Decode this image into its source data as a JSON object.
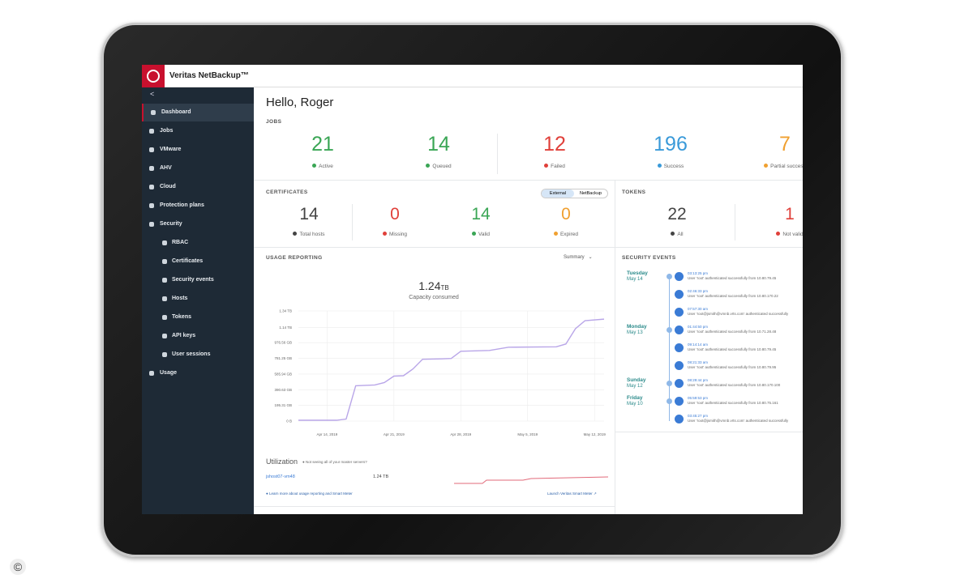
{
  "header": {
    "brand": "Veritas NetBackup™"
  },
  "sidebar": {
    "collapse": "<",
    "items": [
      {
        "label": "Dashboard",
        "level": 1,
        "active": true
      },
      {
        "label": "Jobs",
        "level": 1
      },
      {
        "label": "VMware",
        "level": 1
      },
      {
        "label": "AHV",
        "level": 1
      },
      {
        "label": "Cloud",
        "level": 1
      },
      {
        "label": "Protection plans",
        "level": 1
      },
      {
        "label": "Security",
        "level": 1
      },
      {
        "label": "RBAC",
        "level": 2
      },
      {
        "label": "Certificates",
        "level": 2
      },
      {
        "label": "Security events",
        "level": 2
      },
      {
        "label": "Hosts",
        "level": 2
      },
      {
        "label": "Tokens",
        "level": 2
      },
      {
        "label": "API keys",
        "level": 2
      },
      {
        "label": "User sessions",
        "level": 2
      },
      {
        "label": "Usage",
        "level": 1
      }
    ]
  },
  "greeting": "Hello, Roger",
  "jobs": {
    "title": "JOBS",
    "stats": [
      {
        "value": 21,
        "label": "Active",
        "color": "#3aa655"
      },
      {
        "value": 14,
        "label": "Queued",
        "color": "#3aa655"
      },
      {
        "value": 12,
        "label": "Failed",
        "color": "#e0403a"
      },
      {
        "value": 196,
        "label": "Success",
        "color": "#3a9ad9"
      },
      {
        "value": 7,
        "label": "Partial success",
        "color": "#f0a030"
      }
    ]
  },
  "certificates": {
    "title": "CERTIFICATES",
    "toggle": [
      "External",
      "NetBackup"
    ],
    "stats": [
      {
        "value": 14,
        "label": "Total hosts",
        "color": "#444444"
      },
      {
        "value": 0,
        "label": "Missing",
        "color": "#e0403a"
      },
      {
        "value": 14,
        "label": "Valid",
        "color": "#3aa655"
      },
      {
        "value": 0,
        "label": "Expired",
        "color": "#f0a030"
      }
    ]
  },
  "tokens": {
    "title": "TOKENS",
    "stats": [
      {
        "value": 22,
        "label": "All",
        "color": "#444444"
      },
      {
        "value": 1,
        "label": "Not valid",
        "color": "#e0403a"
      }
    ]
  },
  "usage": {
    "title": "USAGE REPORTING",
    "filter": "Summary",
    "capacity": "1.24",
    "capacity_unit": "TB",
    "capacity_label": "Capacity consumed",
    "chart": {
      "type": "line",
      "color": "#b9a6e8",
      "grid": true,
      "x": [
        "2019-04-11",
        "2019-04-15",
        "2019-04-16",
        "2019-04-17",
        "2019-04-19",
        "2019-04-20",
        "2019-04-21",
        "2019-04-22",
        "2019-04-23",
        "2019-04-24",
        "2019-04-26",
        "2019-04-27",
        "2019-04-28",
        "2019-05-01",
        "2019-05-03",
        "2019-05-08",
        "2019-05-09",
        "2019-05-10",
        "2019-05-11",
        "2019-05-13"
      ],
      "values": [
        10,
        10,
        25,
        440,
        450,
        480,
        560,
        565,
        650,
        770,
        775,
        780,
        870,
        880,
        920,
        925,
        960,
        1150,
        1250,
        1270
      ],
      "xlim": [
        "2019-04-11",
        "2019-05-13"
      ],
      "xticks": [
        {
          "value": "2019-04-14",
          "label": "Apr 14, 2019"
        },
        {
          "value": "2019-04-21",
          "label": "Apr 21, 2019"
        },
        {
          "value": "2019-04-28",
          "label": "Apr 28, 2019"
        },
        {
          "value": "2019-05-05",
          "label": "May 5, 2019"
        },
        {
          "value": "2019-05-12",
          "label": "May 12, 2019"
        }
      ],
      "ylim": [
        0,
        1372.16
      ],
      "yticks": [
        {
          "value": 0,
          "label": "0 B"
        },
        {
          "value": 195.31,
          "label": "195.31 GB"
        },
        {
          "value": 390.63,
          "label": "390.63 GB"
        },
        {
          "value": 585.94,
          "label": "585.94 GB"
        },
        {
          "value": 781.25,
          "label": "781.25 GB"
        },
        {
          "value": 976.56,
          "label": "976.56 GB"
        },
        {
          "value": 1167.36,
          "label": "1.14 TB"
        },
        {
          "value": 1372.16,
          "label": "1.34 TB"
        }
      ]
    },
    "utilization": {
      "title": "Utilization",
      "hint": "Not seeing all of your master servers?",
      "host": "jshost07-vm48",
      "amount": "1.24 TB"
    },
    "learn_more": "Learn more about usage reporting and Smart Meter",
    "launch": "Launch Veritas Smart Meter"
  },
  "security_events": {
    "title": "SECURITY EVENTS",
    "days": [
      {
        "day": "Tuesday",
        "date": "May 14",
        "events": [
          {
            "time": "03:13:25 pm",
            "text": "User 'root' authenticated successfully from 10.80.79.45"
          },
          {
            "time": "02:46:33 pm",
            "text": "User 'root' authenticated successfully from 10.80.170.22"
          },
          {
            "time": "07:57:30 am",
            "text": "User 'root@jsmith@vmnb.vrts.com' authenticated successfully"
          }
        ]
      },
      {
        "day": "Monday",
        "date": "May 13",
        "events": [
          {
            "time": "01:44:50 pm",
            "text": "User 'root' authenticated successfully from 10.71.28.48"
          },
          {
            "time": "09:14:14 am",
            "text": "User 'root' authenticated successfully from 10.80.79.45"
          },
          {
            "time": "08:21:33 am",
            "text": "User 'root' authenticated successfully from 10.80.79.95"
          }
        ]
      },
      {
        "day": "Sunday",
        "date": "May 12",
        "events": [
          {
            "time": "08:29:44 pm",
            "text": "User 'root' authenticated successfully from 10.80.170.100"
          }
        ]
      },
      {
        "day": "Friday",
        "date": "May 10",
        "events": [
          {
            "time": "05:59:53 pm",
            "text": "User 'root' authenticated successfully from 10.80.75.161"
          },
          {
            "time": "03:45:27 pm",
            "text": "User 'root@jsmith@vmnb.vrts.com' authenticated successfully"
          }
        ]
      }
    ]
  },
  "copyright": "©"
}
